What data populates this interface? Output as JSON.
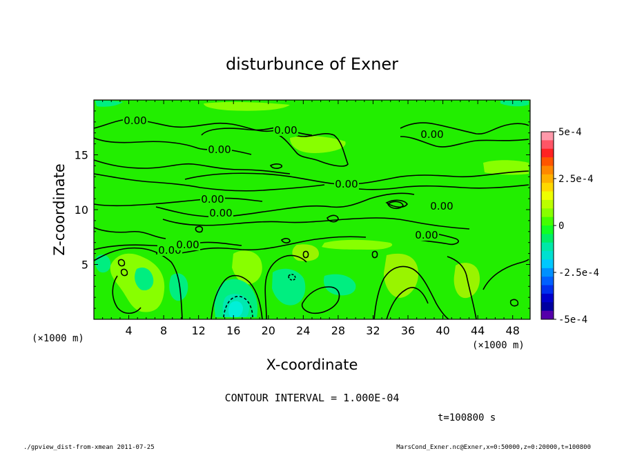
{
  "chart_data": {
    "type": "heatmap",
    "title": "disturbunce of Exner",
    "xlabel": "X-coordinate",
    "ylabel": "Z-coordinate",
    "xlim": [
      0,
      50
    ],
    "ylim": [
      0,
      20
    ],
    "x_ticks": [
      4,
      8,
      12,
      16,
      20,
      24,
      28,
      32,
      36,
      40,
      44,
      48
    ],
    "y_ticks": [
      5,
      10,
      15
    ],
    "x_unit": "(×1000 m)",
    "y_unit": "(×1000 m)",
    "colorbar": {
      "labels": [
        "5e-4",
        "2.5e-4",
        "0",
        "-2.5e-4",
        "-5e-4"
      ],
      "min": -0.0005,
      "max": 0.0005,
      "colors": [
        "#ff99aa",
        "#ff5566",
        "#ff2222",
        "#ff5500",
        "#ff8800",
        "#ffb000",
        "#ffd800",
        "#eeff00",
        "#bbff00",
        "#88ff00",
        "#44ff00",
        "#11ff22",
        "#00ee66",
        "#00e8a8",
        "#00e0d0",
        "#00c8ff",
        "#0090ff",
        "#0060ff",
        "#0030ee",
        "#0000cc",
        "#0000a0",
        "#5500aa"
      ]
    },
    "contour_interval": "CONTOUR INTERVAL = 1.000E-04",
    "contour_labels": [
      "0.00",
      "0.00",
      "0.00",
      "0.00",
      "0.00",
      "0.00",
      "0.00",
      "0.00",
      "0.00",
      "0.00",
      "0.00",
      "0.00"
    ],
    "time_label": "t=100800 s",
    "footer_left": "./gpview_dist-from-xmean  2011-07-25",
    "footer_right": "MarsCond_Exner.nc@Exner,x=0:50000,z=0:20000,t=100800"
  }
}
